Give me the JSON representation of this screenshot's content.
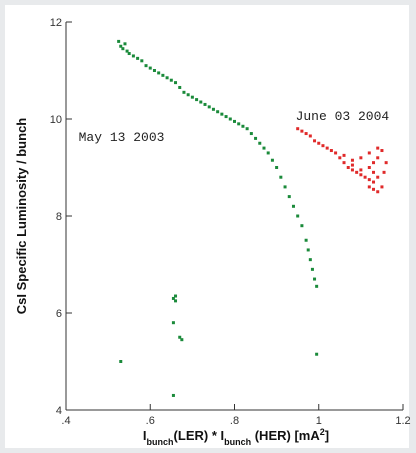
{
  "chart_data": {
    "type": "scatter",
    "xlabel_parts": [
      {
        "text": "I",
        "sub": false
      },
      {
        "text": "bunch",
        "sub": true
      },
      {
        "text": "(LER) * I",
        "sub": false
      },
      {
        "text": "bunch",
        "sub": true
      },
      {
        "text": " (HER) [mA",
        "sub": false
      },
      {
        "text": "2",
        "sup": true
      },
      {
        "text": "]",
        "sub": false
      }
    ],
    "ylabel": "CsI Specific Luminosity / bunch",
    "xlim": [
      0.4,
      1.2
    ],
    "ylim": [
      4,
      12
    ],
    "xticks": [
      {
        "value": 0.4,
        "label": ".4"
      },
      {
        "value": 0.6,
        "label": ".6"
      },
      {
        "value": 0.8,
        "label": ".8"
      },
      {
        "value": 1.0,
        "label": "1"
      },
      {
        "value": 1.2,
        "label": "1.2"
      }
    ],
    "yticks": [
      {
        "value": 4,
        "label": "4"
      },
      {
        "value": 6,
        "label": "6"
      },
      {
        "value": 8,
        "label": "8"
      },
      {
        "value": 10,
        "label": "10"
      },
      {
        "value": 12,
        "label": "12"
      }
    ],
    "annotations": [
      {
        "text": "May 13 2003",
        "x": 0.43,
        "y": 9.55
      },
      {
        "text": "June 03 2004",
        "x": 0.945,
        "y": 9.98
      }
    ],
    "series": [
      {
        "color": "#1a8a3a",
        "points": [
          [
            0.525,
            11.6
          ],
          [
            0.53,
            11.5
          ],
          [
            0.535,
            11.45
          ],
          [
            0.54,
            11.55
          ],
          [
            0.545,
            11.4
          ],
          [
            0.55,
            11.35
          ],
          [
            0.56,
            11.3
          ],
          [
            0.57,
            11.25
          ],
          [
            0.58,
            11.2
          ],
          [
            0.59,
            11.1
          ],
          [
            0.6,
            11.05
          ],
          [
            0.61,
            11.0
          ],
          [
            0.62,
            10.95
          ],
          [
            0.63,
            10.9
          ],
          [
            0.64,
            10.85
          ],
          [
            0.65,
            10.8
          ],
          [
            0.66,
            10.75
          ],
          [
            0.67,
            10.65
          ],
          [
            0.68,
            10.55
          ],
          [
            0.69,
            10.5
          ],
          [
            0.7,
            10.45
          ],
          [
            0.71,
            10.4
          ],
          [
            0.72,
            10.35
          ],
          [
            0.73,
            10.3
          ],
          [
            0.74,
            10.25
          ],
          [
            0.75,
            10.2
          ],
          [
            0.76,
            10.15
          ],
          [
            0.77,
            10.1
          ],
          [
            0.78,
            10.05
          ],
          [
            0.79,
            10.0
          ],
          [
            0.8,
            9.95
          ],
          [
            0.81,
            9.9
          ],
          [
            0.82,
            9.85
          ],
          [
            0.83,
            9.8
          ],
          [
            0.84,
            9.7
          ],
          [
            0.85,
            9.6
          ],
          [
            0.86,
            9.5
          ],
          [
            0.87,
            9.4
          ],
          [
            0.88,
            9.3
          ],
          [
            0.89,
            9.15
          ],
          [
            0.9,
            9.0
          ],
          [
            0.91,
            8.8
          ],
          [
            0.92,
            8.6
          ],
          [
            0.93,
            8.4
          ],
          [
            0.94,
            8.2
          ],
          [
            0.95,
            8.0
          ],
          [
            0.96,
            7.8
          ],
          [
            0.97,
            7.5
          ],
          [
            0.975,
            7.3
          ],
          [
            0.98,
            7.1
          ],
          [
            0.985,
            6.9
          ],
          [
            0.99,
            6.7
          ],
          [
            0.995,
            6.55
          ],
          [
            0.53,
            5.0
          ],
          [
            0.655,
            6.3
          ],
          [
            0.66,
            6.35
          ],
          [
            0.66,
            6.25
          ],
          [
            0.655,
            5.8
          ],
          [
            0.67,
            5.5
          ],
          [
            0.675,
            5.45
          ],
          [
            0.655,
            4.3
          ],
          [
            0.995,
            5.15
          ]
        ]
      },
      {
        "color": "#e02a2a",
        "points": [
          [
            0.95,
            9.8
          ],
          [
            0.96,
            9.75
          ],
          [
            0.97,
            9.7
          ],
          [
            0.98,
            9.65
          ],
          [
            0.99,
            9.55
          ],
          [
            1.0,
            9.5
          ],
          [
            1.01,
            9.45
          ],
          [
            1.02,
            9.4
          ],
          [
            1.03,
            9.35
          ],
          [
            1.04,
            9.3
          ],
          [
            1.05,
            9.2
          ],
          [
            1.06,
            9.1
          ],
          [
            1.07,
            9.0
          ],
          [
            1.08,
            8.95
          ],
          [
            1.09,
            8.9
          ],
          [
            1.1,
            8.85
          ],
          [
            1.11,
            8.8
          ],
          [
            1.12,
            8.75
          ],
          [
            1.13,
            8.7
          ],
          [
            1.14,
            8.8
          ],
          [
            1.13,
            8.9
          ],
          [
            1.12,
            9.0
          ],
          [
            1.13,
            9.1
          ],
          [
            1.14,
            9.2
          ],
          [
            1.15,
            9.35
          ],
          [
            1.14,
            9.4
          ],
          [
            1.12,
            9.3
          ],
          [
            1.1,
            9.2
          ],
          [
            1.08,
            9.15
          ],
          [
            1.06,
            9.25
          ],
          [
            1.08,
            9.05
          ],
          [
            1.1,
            8.95
          ],
          [
            1.12,
            8.6
          ],
          [
            1.13,
            8.55
          ],
          [
            1.14,
            8.5
          ],
          [
            1.15,
            8.6
          ],
          [
            1.155,
            8.9
          ],
          [
            1.16,
            9.1
          ]
        ]
      }
    ]
  }
}
